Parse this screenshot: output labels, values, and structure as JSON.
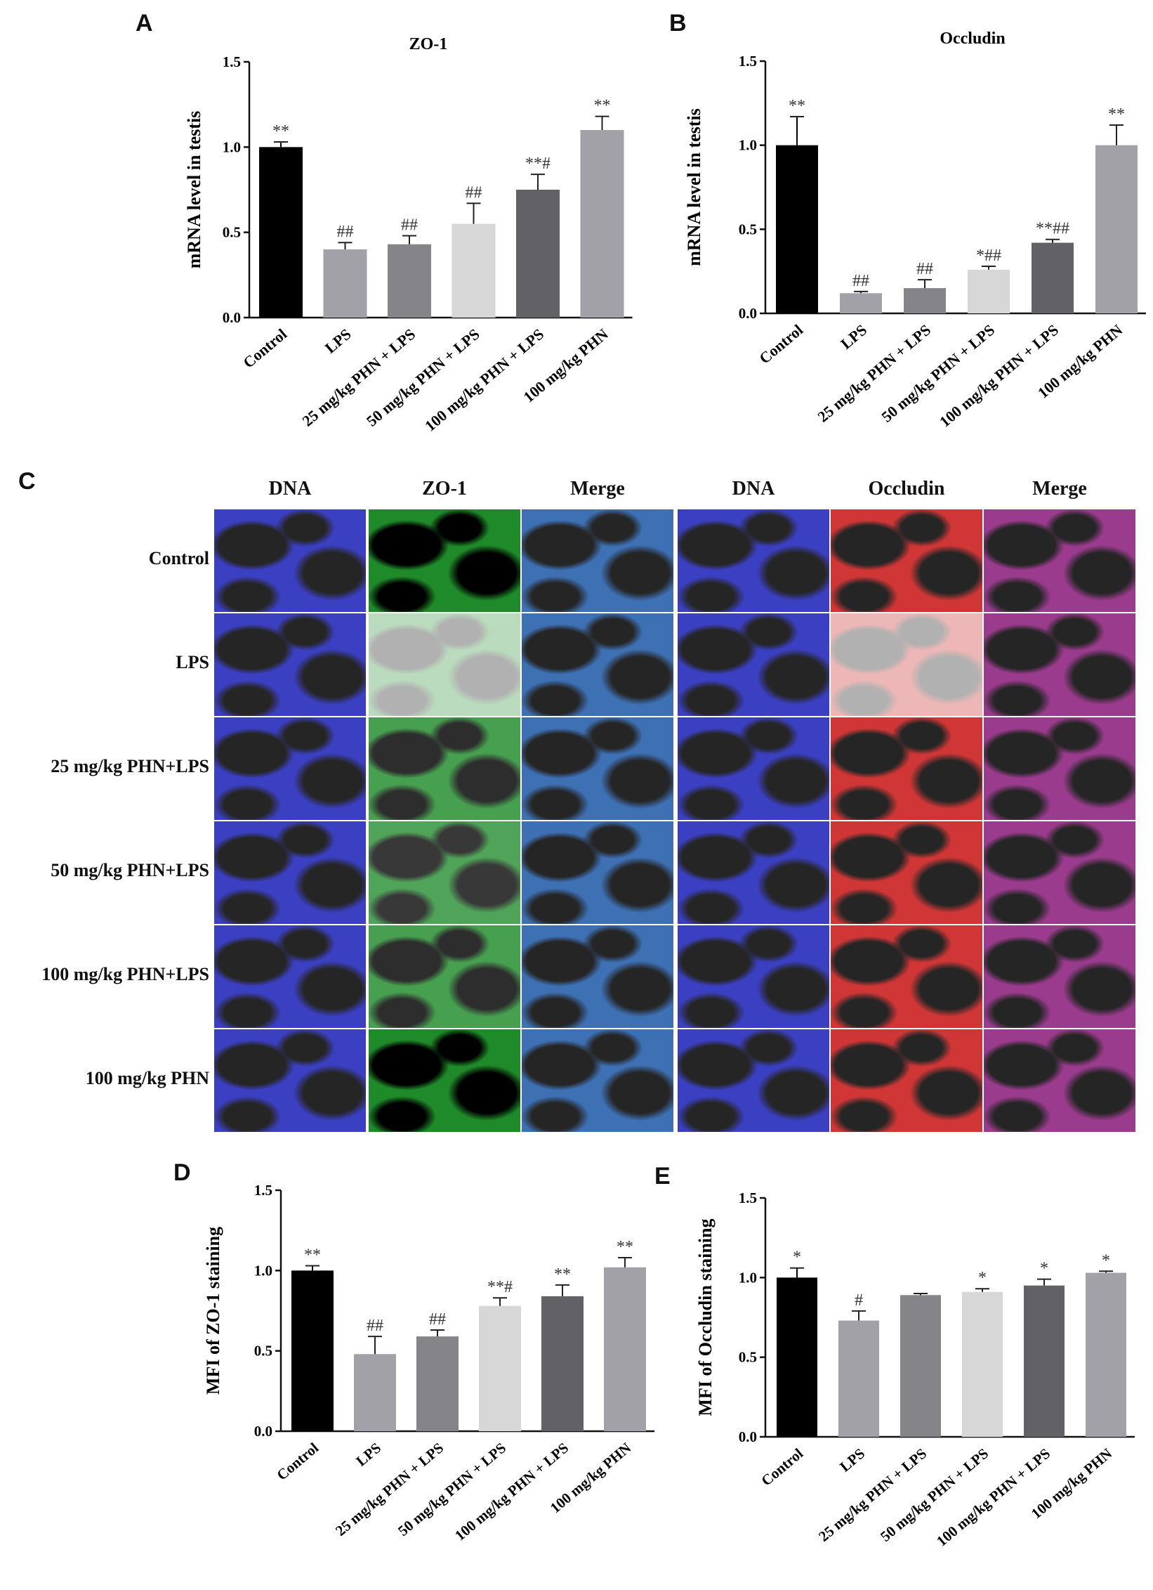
{
  "panels": {
    "A": "A",
    "B": "B",
    "C": "C",
    "D": "D",
    "E": "E"
  },
  "micrograph": {
    "columns": [
      "DNA",
      "ZO-1",
      "Merge",
      "DNA",
      "Occludin",
      "Merge"
    ],
    "rows": [
      "Control",
      "LPS",
      "25 mg/kg PHN+LPS",
      "50 mg/kg PHN+LPS",
      "100 mg/kg PHN+LPS",
      "100 mg/kg PHN"
    ],
    "intensity_note_colors": {
      "dna": "#1a1fb8",
      "zo1": "#1f8a2a",
      "occludin": "#c81414",
      "merge_zo1": "#1d58a8",
      "merge_occludin": "#8a1a7a"
    }
  },
  "chart_data": [
    {
      "id": "A",
      "type": "bar",
      "title": "ZO-1",
      "ylabel": "mRNA level in testis",
      "ylim": [
        0,
        1.5
      ],
      "yticks": [
        "0.0",
        "0.5",
        "1.0",
        "1.5"
      ],
      "categories": [
        "Control",
        "LPS",
        "25 mg/kg PHN + LPS",
        "50 mg/kg PHN + LPS",
        "100 mg/kg PHN + LPS",
        "100 mg/kg PHN"
      ],
      "values": [
        1.0,
        0.4,
        0.43,
        0.55,
        0.75,
        1.1
      ],
      "errors": [
        0.03,
        0.04,
        0.05,
        0.12,
        0.09,
        0.08
      ],
      "annotations": [
        "**",
        "##",
        "##",
        "##",
        "**#",
        "**"
      ],
      "colors": [
        "#000000",
        "#a2a1a8",
        "#858489",
        "#d7d7d7",
        "#626266",
        "#a2a1a8"
      ]
    },
    {
      "id": "B",
      "type": "bar",
      "title": "Occludin",
      "ylabel": "mRNA level in testis",
      "ylim": [
        0,
        1.5
      ],
      "yticks": [
        "0.0",
        "0.5",
        "1.0",
        "1.5"
      ],
      "categories": [
        "Control",
        "LPS",
        "25 mg/kg PHN + LPS",
        "50 mg/kg PHN + LPS",
        "100 mg/kg PHN + LPS",
        "100 mg/kg PHN"
      ],
      "values": [
        1.0,
        0.12,
        0.15,
        0.26,
        0.42,
        1.0
      ],
      "errors": [
        0.17,
        0.01,
        0.05,
        0.02,
        0.02,
        0.12
      ],
      "annotations": [
        "**",
        "##",
        "##",
        "*##",
        "**##",
        "**"
      ],
      "colors": [
        "#000000",
        "#a2a1a8",
        "#858489",
        "#d7d7d7",
        "#626266",
        "#a2a1a8"
      ]
    },
    {
      "id": "D",
      "type": "bar",
      "title": "",
      "ylabel": "MFI of ZO-1 staining",
      "ylim": [
        0,
        1.5
      ],
      "yticks": [
        "0.0",
        "0.5",
        "1.0",
        "1.5"
      ],
      "categories": [
        "Control",
        "LPS",
        "25 mg/kg PHN + LPS",
        "50 mg/kg PHN + LPS",
        "100 mg/kg PHN + LPS",
        "100 mg/kg PHN"
      ],
      "values": [
        1.0,
        0.48,
        0.59,
        0.78,
        0.84,
        1.02
      ],
      "errors": [
        0.03,
        0.11,
        0.04,
        0.05,
        0.07,
        0.06
      ],
      "annotations": [
        "**",
        "##",
        "##",
        "**#",
        "**",
        "**"
      ],
      "colors": [
        "#000000",
        "#a2a1a8",
        "#858489",
        "#d7d7d7",
        "#626266",
        "#a2a1a8"
      ]
    },
    {
      "id": "E",
      "type": "bar",
      "title": "",
      "ylabel": "MFI of Occludin staining",
      "ylim": [
        0,
        1.5
      ],
      "yticks": [
        "0.0",
        "0.5",
        "1.0",
        "1.5"
      ],
      "categories": [
        "Control",
        "LPS",
        "25 mg/kg PHN + LPS",
        "50 mg/kg PHN + LPS",
        "100 mg/kg PHN + LPS",
        "100 mg/kg PHN"
      ],
      "values": [
        1.0,
        0.73,
        0.89,
        0.91,
        0.95,
        1.03
      ],
      "errors": [
        0.06,
        0.06,
        0.01,
        0.02,
        0.04,
        0.01
      ],
      "annotations": [
        "*",
        "#",
        "",
        "*",
        "*",
        "*"
      ],
      "colors": [
        "#000000",
        "#a2a1a8",
        "#858489",
        "#d7d7d7",
        "#626266",
        "#a2a1a8"
      ]
    }
  ]
}
